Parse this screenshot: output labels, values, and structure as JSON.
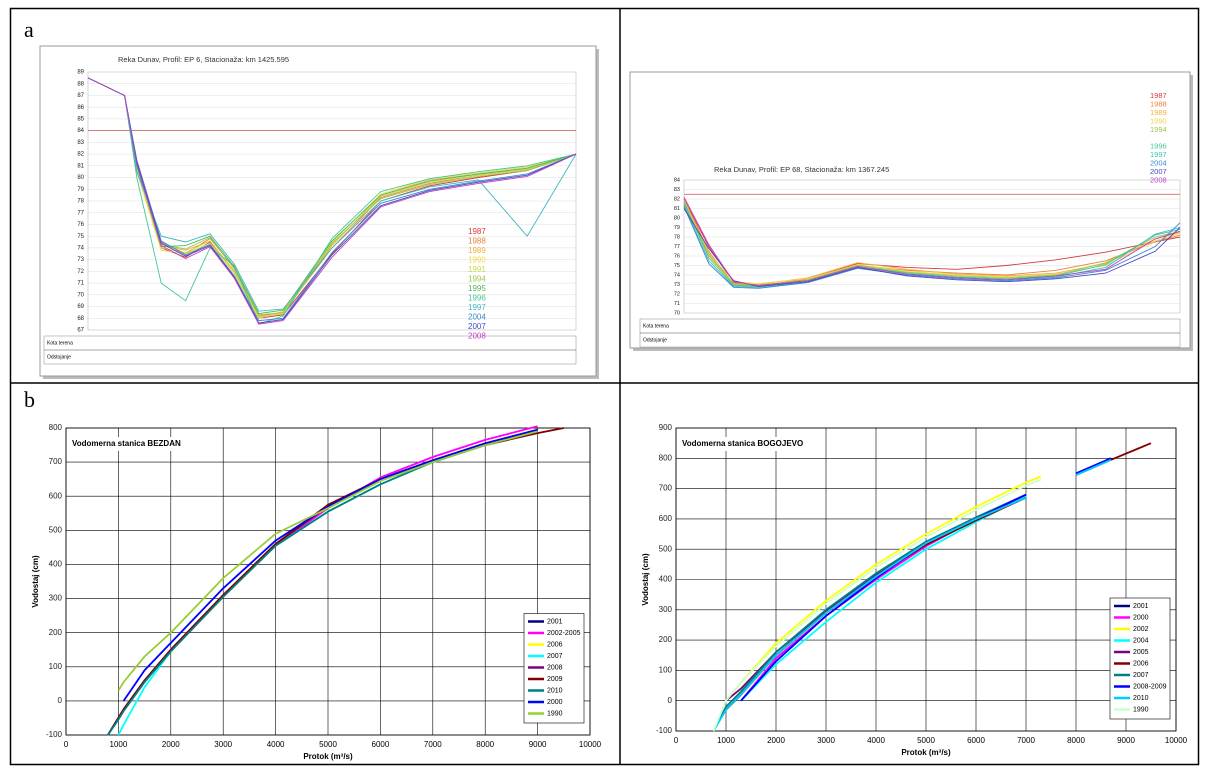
{
  "panel_labels": [
    "a",
    "b"
  ],
  "chart_data": [
    {
      "type": "line",
      "title": "Reka Dunav,  Profil: EP 6,  Stacionaža: km 1425.595",
      "x": [
        0,
        1.5,
        2,
        3,
        4,
        5,
        6,
        7,
        8,
        10,
        12,
        14,
        16,
        18,
        20
      ],
      "xlim": [
        0,
        20
      ],
      "ylim": [
        67,
        89
      ],
      "yticks": [
        67,
        68,
        69,
        70,
        71,
        72,
        73,
        74,
        75,
        76,
        77,
        78,
        79,
        80,
        81,
        82,
        83,
        84,
        85,
        86,
        87,
        88,
        89
      ],
      "grid": true,
      "hline": 84,
      "row_labels": [
        "Kota terena",
        "Odstojanje"
      ],
      "legend": "right",
      "series": [
        {
          "name": "1987",
          "color": "#d9383a",
          "values": [
            88.5,
            87,
            81,
            74,
            73.2,
            74.5,
            72,
            68,
            68.3,
            73.5,
            78,
            79.3,
            80,
            80.6,
            82
          ]
        },
        {
          "name": "1988",
          "color": "#e8823c",
          "values": [
            88.5,
            87,
            81.5,
            74.5,
            73.5,
            74.8,
            72.3,
            68.2,
            68.5,
            74,
            78.3,
            79.5,
            80.2,
            80.7,
            82
          ]
        },
        {
          "name": "1989",
          "color": "#f0b040",
          "values": [
            88.5,
            87,
            81,
            74.2,
            73.8,
            74.6,
            72,
            68.1,
            68.4,
            74.2,
            78.5,
            79.8,
            80.3,
            80.8,
            82
          ]
        },
        {
          "name": "1990",
          "color": "#f0d84a",
          "values": [
            88.5,
            87,
            80.5,
            73.8,
            73.5,
            74.4,
            71.8,
            68,
            68.6,
            74.5,
            78.6,
            79.9,
            80.4,
            80.9,
            82
          ]
        },
        {
          "name": "1991",
          "color": "#c8d84a",
          "values": [
            88.5,
            87,
            80.8,
            74,
            73.6,
            74.6,
            71.9,
            68.1,
            68.4,
            74.3,
            78.4,
            79.6,
            80.2,
            80.7,
            82
          ]
        },
        {
          "name": "1994",
          "color": "#98c850",
          "values": [
            88.5,
            87,
            81.2,
            74.3,
            73.9,
            74.9,
            72.2,
            68.3,
            68.5,
            74.4,
            78.2,
            79.4,
            80.1,
            80.6,
            82
          ]
        },
        {
          "name": "1995",
          "color": "#50b858",
          "values": [
            88.5,
            87,
            81,
            74.1,
            74.2,
            75,
            72.4,
            68.4,
            68.7,
            74.6,
            78.5,
            79.7,
            80.3,
            80.8,
            82
          ]
        },
        {
          "name": "1996",
          "color": "#40c890",
          "values": [
            88.5,
            87,
            80,
            71,
            69.5,
            74,
            72.5,
            67.5,
            68.2,
            74.8,
            78.8,
            79.9,
            80.5,
            81,
            82
          ]
        },
        {
          "name": "1997",
          "color": "#40b8c0",
          "values": [
            88.5,
            87,
            80.5,
            75,
            74.5,
            75.2,
            72.6,
            68.6,
            68.8,
            74,
            78,
            79.2,
            79.8,
            75,
            82
          ]
        },
        {
          "name": "2004",
          "color": "#3a88d0",
          "values": [
            88.5,
            87,
            81.5,
            74.6,
            73.4,
            74.3,
            71.6,
            67.8,
            68,
            73.6,
            77.8,
            79,
            79.7,
            80.3,
            82
          ]
        },
        {
          "name": "2007",
          "color": "#4a48c0",
          "values": [
            88.5,
            87,
            81.3,
            74.4,
            73.3,
            74.2,
            71.5,
            67.6,
            67.9,
            73.4,
            77.6,
            78.9,
            79.6,
            80.2,
            82
          ]
        },
        {
          "name": "2008",
          "color": "#c040c8",
          "values": [
            88.5,
            87,
            81.1,
            74.2,
            73.1,
            74.1,
            71.4,
            67.5,
            67.8,
            73.2,
            77.5,
            78.8,
            79.5,
            80.1,
            82
          ]
        }
      ]
    },
    {
      "type": "line",
      "title": "Reka Dunav,  Profil: EP 68,  Stacionaža: km 1367.245",
      "x": [
        0,
        1,
        2,
        3,
        5,
        7,
        9,
        11,
        13,
        15,
        17,
        19,
        20
      ],
      "xlim": [
        0,
        20
      ],
      "ylim": [
        70,
        84
      ],
      "yticks": [
        70,
        71,
        72,
        73,
        74,
        75,
        76,
        77,
        78,
        79,
        80,
        81,
        82,
        83,
        84
      ],
      "grid": true,
      "hline": 82.5,
      "row_labels": [
        "Kota terena",
        "Odstojanje"
      ],
      "legend": "top-right",
      "series": [
        {
          "name": "1987",
          "color": "#d9383a",
          "values": [
            82,
            77,
            73.2,
            72.8,
            73.6,
            75.2,
            74.8,
            74.6,
            75,
            75.6,
            76.4,
            77.5,
            78
          ]
        },
        {
          "name": "1988",
          "color": "#e8823c",
          "values": [
            82,
            76.5,
            73,
            72.9,
            73.5,
            75,
            74.5,
            74.2,
            74,
            74.5,
            75.5,
            77.5,
            78.2
          ]
        },
        {
          "name": "1989",
          "color": "#f0b040",
          "values": [
            81.5,
            76,
            73.1,
            73,
            73.7,
            75.3,
            74.6,
            74.1,
            73.9,
            74.2,
            75.2,
            77.8,
            78.5
          ]
        },
        {
          "name": "1990",
          "color": "#f0d84a",
          "values": [
            81.8,
            76.3,
            73.3,
            73.1,
            73.6,
            75.1,
            74.4,
            74,
            73.8,
            74.1,
            75,
            77.6,
            78.4
          ]
        },
        {
          "name": "1994",
          "color": "#98c850",
          "values": [
            81.6,
            76.2,
            73,
            72.9,
            73.5,
            75,
            74.3,
            73.9,
            73.7,
            74,
            75.3,
            78,
            78.6
          ]
        },
        {
          "name": "1996",
          "color": "#40c890",
          "values": [
            81.7,
            75.8,
            72.9,
            72.8,
            73.4,
            74.9,
            74.2,
            73.8,
            73.6,
            73.9,
            75.1,
            78.2,
            78.8
          ]
        },
        {
          "name": "1997",
          "color": "#40b8c0",
          "values": [
            81.4,
            75.5,
            72.8,
            72.7,
            73.3,
            74.8,
            74.1,
            73.7,
            73.5,
            73.8,
            74.8,
            78.3,
            79
          ]
        },
        {
          "name": "2004",
          "color": "#3a88d0",
          "values": [
            81.2,
            75.2,
            72.7,
            72.6,
            73.2,
            74.7,
            74,
            73.6,
            73.4,
            73.7,
            74.5,
            77,
            79.5
          ]
        },
        {
          "name": "2007",
          "color": "#4a48c0",
          "values": [
            81,
            76.8,
            73.4,
            72.8,
            73.3,
            74.8,
            73.9,
            73.5,
            73.3,
            73.6,
            74.2,
            76.5,
            79
          ]
        },
        {
          "name": "2008",
          "color": "#c040c8",
          "values": [
            82.2,
            77.2,
            73.3,
            72.9,
            73.4,
            74.9,
            74.1,
            73.7,
            73.5,
            73.9,
            74.6,
            77.8,
            78.6
          ]
        }
      ]
    },
    {
      "type": "line",
      "title": "Vodomerna stanica BEZDAN",
      "xlabel": "Protok (m³/s)",
      "ylabel": "Vodostaj (cm)",
      "x": [
        800,
        1000,
        1100,
        1500,
        2000,
        3000,
        4000,
        5000,
        6000,
        7000,
        8000,
        9000,
        9500
      ],
      "xlim": [
        0,
        10000
      ],
      "xticks": [
        0,
        1000,
        2000,
        3000,
        4000,
        5000,
        6000,
        7000,
        8000,
        9000,
        10000
      ],
      "ylim": [
        -100,
        800
      ],
      "yticks": [
        -100,
        0,
        100,
        200,
        300,
        400,
        500,
        600,
        700,
        800
      ],
      "grid": true,
      "legend": "bottom-right",
      "series": [
        {
          "name": "2001",
          "color": "#000080",
          "values": [
            -100,
            -50,
            -25,
            60,
            150,
            310,
            460,
            570,
            650,
            705,
            755,
            795,
            null
          ]
        },
        {
          "name": "2002-2005",
          "color": "#ff00ff",
          "values": [
            null,
            -50,
            -25,
            60,
            150,
            310,
            455,
            565,
            655,
            715,
            765,
            805,
            null
          ]
        },
        {
          "name": "2006",
          "color": "#ffff00",
          "values": [
            -100,
            -50,
            -25,
            60,
            150,
            310,
            460,
            570,
            650,
            705,
            755,
            795,
            null
          ]
        },
        {
          "name": "2007",
          "color": "#00ffff",
          "values": [
            null,
            -100,
            -70,
            40,
            145,
            310,
            455,
            555,
            635,
            700,
            750,
            790,
            null
          ]
        },
        {
          "name": "2008",
          "color": "#800080",
          "values": [
            -100,
            -50,
            -25,
            60,
            150,
            310,
            460,
            570,
            650,
            705,
            755,
            795,
            null
          ]
        },
        {
          "name": "2009",
          "color": "#800000",
          "values": [
            -100,
            -50,
            -25,
            60,
            150,
            310,
            460,
            575,
            650,
            705,
            750,
            785,
            800
          ]
        },
        {
          "name": "2010",
          "color": "#008080",
          "values": [
            -100,
            -55,
            -30,
            55,
            145,
            305,
            455,
            555,
            635,
            700,
            750,
            790,
            null
          ]
        },
        {
          "name": "2000",
          "color": "#0000ff",
          "values": [
            null,
            null,
            0,
            90,
            170,
            330,
            470,
            570,
            650,
            705,
            755,
            795,
            null
          ]
        },
        {
          "name": "1990",
          "color": "#99cc33",
          "values": [
            null,
            30,
            55,
            130,
            200,
            360,
            490,
            565,
            645,
            700,
            750,
            790,
            null
          ]
        }
      ]
    },
    {
      "type": "line",
      "title": "Vodomerna stanica BOGOJEVO",
      "xlabel": "Protok (m³/s)",
      "ylabel": "Vodostaj (cm)",
      "x": [
        750,
        1000,
        1300,
        2000,
        3000,
        4000,
        5000,
        6000,
        7000,
        7300,
        8000,
        8700,
        9500
      ],
      "xlim": [
        0,
        10000
      ],
      "xticks": [
        0,
        1000,
        2000,
        3000,
        4000,
        5000,
        6000,
        7000,
        8000,
        9000,
        10000
      ],
      "ylim": [
        -100,
        900
      ],
      "yticks": [
        -100,
        0,
        100,
        200,
        300,
        400,
        500,
        600,
        700,
        800,
        900
      ],
      "grid": true,
      "legend": "bottom-right",
      "series": [
        {
          "name": "2001",
          "color": "#000080",
          "values": [
            null,
            -30,
            20,
            150,
            290,
            410,
            520,
            600,
            680,
            null,
            750,
            800,
            null
          ]
        },
        {
          "name": "2000",
          "color": "#ff00ff",
          "values": [
            null,
            null,
            0,
            140,
            280,
            400,
            510,
            600,
            680,
            null,
            750,
            800,
            null
          ]
        },
        {
          "name": "2002",
          "color": "#ffff00",
          "values": [
            null,
            0,
            60,
            190,
            330,
            450,
            550,
            640,
            720,
            740,
            null,
            null,
            null
          ]
        },
        {
          "name": "2004",
          "color": "#00ffff",
          "values": [
            null,
            null,
            0,
            120,
            260,
            390,
            500,
            590,
            675,
            null,
            745,
            800,
            null
          ]
        },
        {
          "name": "2005",
          "color": "#800080",
          "values": [
            null,
            0,
            40,
            160,
            295,
            415,
            520,
            605,
            680,
            null,
            748,
            800,
            null
          ]
        },
        {
          "name": "2006",
          "color": "#800000",
          "values": [
            null,
            -30,
            20,
            150,
            290,
            410,
            515,
            595,
            670,
            null,
            745,
            795,
            850
          ]
        },
        {
          "name": "2007",
          "color": "#008080",
          "values": [
            -100,
            -20,
            30,
            160,
            300,
            420,
            525,
            605,
            680,
            null,
            750,
            800,
            null
          ]
        },
        {
          "name": "2008-2009",
          "color": "#0000ff",
          "values": [
            null,
            null,
            0,
            130,
            280,
            405,
            520,
            600,
            680,
            null,
            750,
            800,
            null
          ]
        },
        {
          "name": "2010",
          "color": "#00ccff",
          "values": [
            -100,
            -30,
            20,
            150,
            290,
            410,
            520,
            600,
            670,
            null,
            745,
            795,
            null
          ]
        },
        {
          "name": "1990",
          "color": "#ccffcc",
          "values": [
            -100,
            0,
            60,
            180,
            320,
            440,
            540,
            630,
            710,
            730,
            null,
            null,
            null
          ]
        }
      ]
    }
  ]
}
